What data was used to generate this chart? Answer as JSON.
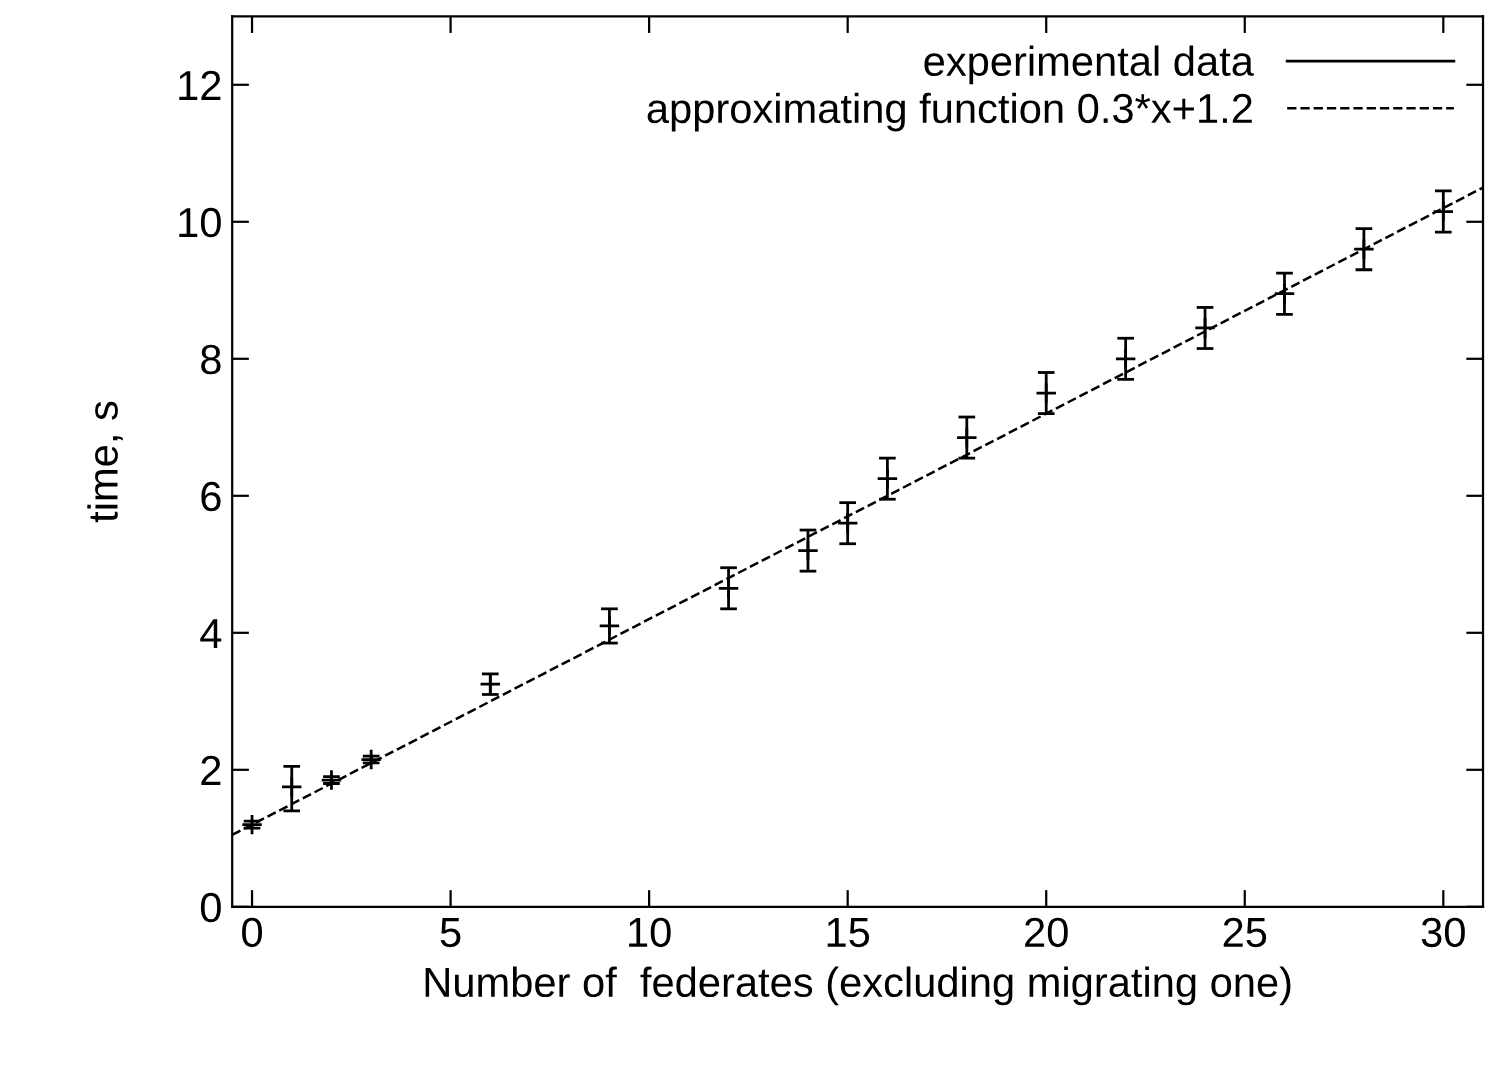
{
  "chart_data": {
    "type": "scatter",
    "xlabel": "Number of  federates (excluding migrating one)",
    "ylabel": "time, s",
    "xlim": [
      -0.5,
      31
    ],
    "ylim": [
      0,
      13
    ],
    "xticks": [
      0,
      5,
      10,
      15,
      20,
      25,
      30
    ],
    "yticks": [
      0,
      2,
      4,
      6,
      8,
      10,
      12
    ],
    "grid": false,
    "legend": "top right",
    "series": [
      {
        "name": "experimental data",
        "color": "#000000",
        "marker": "cross",
        "x": [
          0,
          1,
          2,
          3,
          6,
          9,
          12,
          14,
          15,
          16,
          18,
          20,
          22,
          24,
          26,
          28,
          30
        ],
        "values": [
          1.2,
          1.75,
          1.85,
          2.15,
          3.25,
          4.1,
          4.65,
          5.2,
          5.6,
          6.25,
          6.85,
          7.5,
          8.0,
          8.45,
          8.95,
          9.6,
          10.15
        ],
        "errors": [
          0.05,
          [
            1.4,
            2.05
          ],
          0.05,
          0.05,
          0.15,
          0.25,
          0.3,
          0.3,
          0.3,
          0.3,
          0.3,
          0.3,
          0.3,
          0.3,
          0.3,
          0.3,
          0.3
        ]
      },
      {
        "name": "approximating function 0.3*x+1.2",
        "type": "line",
        "color": "#000000",
        "line_style": "dashed",
        "marker": "none",
        "x": [
          -0.5,
          31
        ],
        "values": [
          1.05,
          10.5
        ]
      }
    ]
  }
}
